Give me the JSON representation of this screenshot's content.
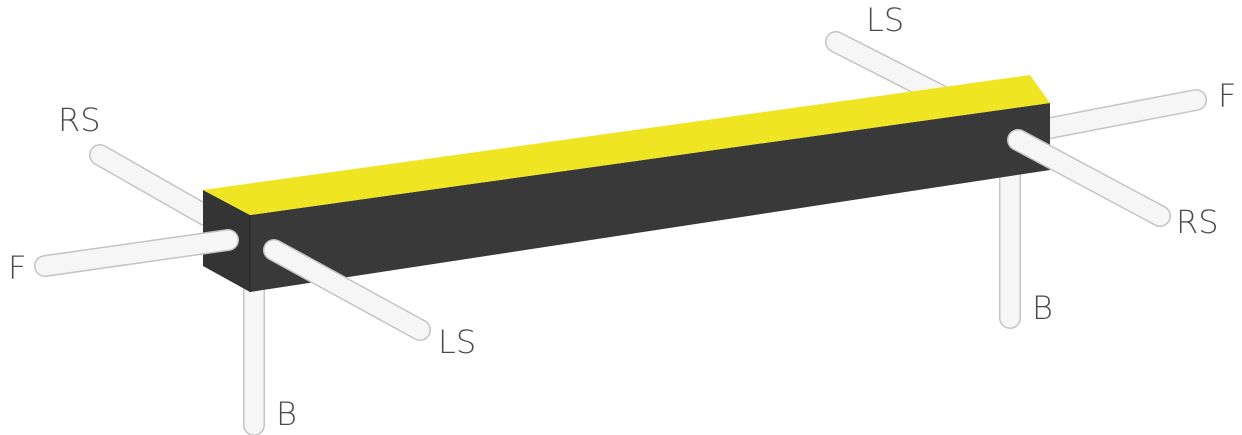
{
  "labels": [
    "RS",
    "F",
    "LS",
    "B",
    "LS",
    "F",
    "RS",
    "B"
  ]
}
